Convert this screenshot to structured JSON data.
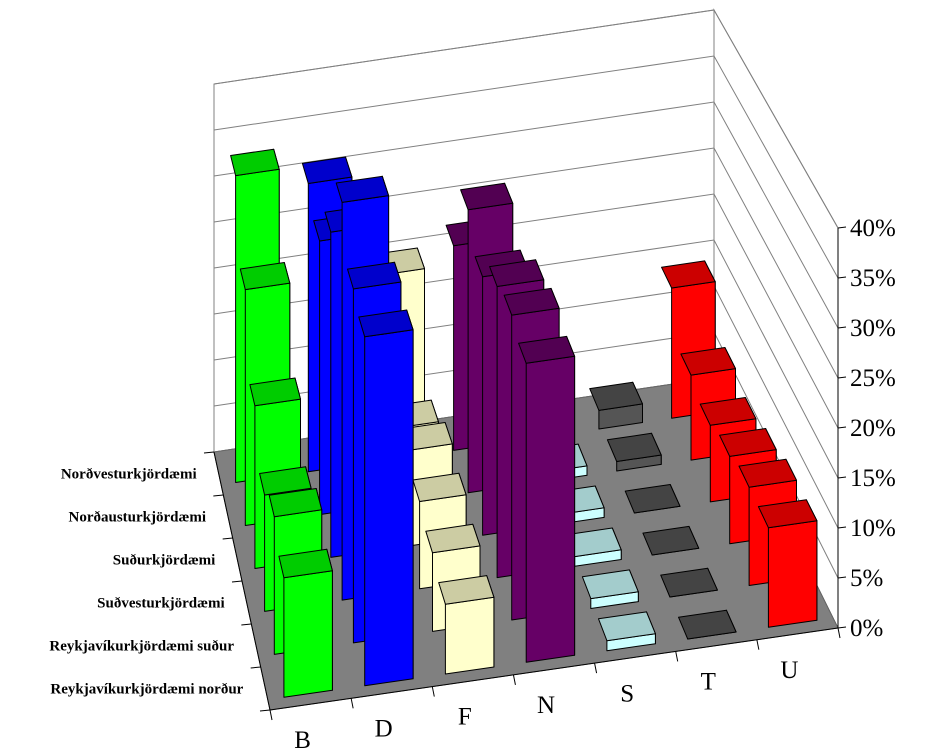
{
  "chart_data": {
    "type": "bar",
    "variant": "3d-column",
    "x_categories": [
      "B",
      "D",
      "F",
      "N",
      "S",
      "T",
      "U"
    ],
    "depth_categories": [
      "Reykjavíkurkjördæmi norður",
      "Reykjavíkurkjördæmi suður",
      "Suðvesturkjördæmi",
      "Suðurkjördæmi",
      "Norðausturkjördæmi",
      "Norðvesturkjördæmi"
    ],
    "z_ticks": [
      "0%",
      "5%",
      "10%",
      "15%",
      "20%",
      "25%",
      "30%",
      "35%",
      "40%"
    ],
    "zlim": [
      0,
      40
    ],
    "grid": true,
    "legend": "none",
    "colors": {
      "B": "#00ff00",
      "D": "#0000ff",
      "F": "#ffffcc",
      "N": "#660066",
      "S": "#ccffff",
      "T": "#555555",
      "U": "#ff0000",
      "floor": "#808080",
      "wall": "#ffffff"
    },
    "series": [
      {
        "category": "B",
        "values": [
          12,
          14,
          12,
          17,
          25,
          33
        ]
      },
      {
        "category": "D",
        "values": [
          35,
          36,
          41,
          34,
          29,
          31
        ]
      },
      {
        "category": "F",
        "values": [
          7,
          8,
          9,
          10,
          8,
          20
        ]
      },
      {
        "category": "N",
        "values": [
          30,
          31,
          30,
          27,
          30,
          22
        ]
      },
      {
        "category": "S",
        "values": [
          1,
          1,
          1,
          1,
          1,
          1
        ]
      },
      {
        "category": "T",
        "values": [
          0,
          0,
          0,
          0,
          1,
          2
        ]
      },
      {
        "category": "U",
        "values": [
          10,
          10,
          9,
          8,
          9,
          14
        ]
      }
    ]
  }
}
